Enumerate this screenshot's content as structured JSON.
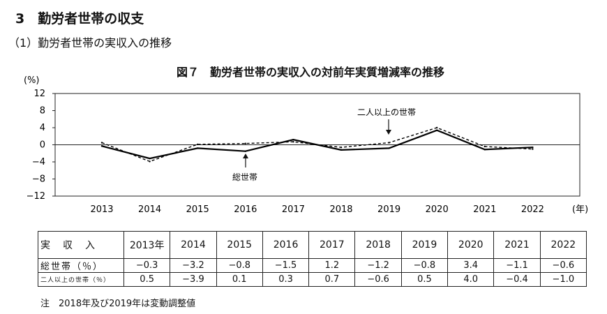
{
  "section_title": "3　勤労者世帯の収支",
  "subsection_title": "（1）勤労者世帯の実収入の推移",
  "chart_data": {
    "type": "line",
    "title": "図７　勤労者世帯の実収入の対前年実質増減率の推移",
    "ylabel": "(%)",
    "xlabel": "(年)",
    "ylim": [
      -12,
      12
    ],
    "yticks": [
      12,
      8,
      4,
      0,
      -4,
      -8,
      -12
    ],
    "ytick_labels": [
      "12",
      "8",
      "4",
      "0",
      "−4",
      "−8",
      "−12"
    ],
    "categories": [
      "2013",
      "2014",
      "2015",
      "2016",
      "2017",
      "2018",
      "2019",
      "2020",
      "2021",
      "2022"
    ],
    "series": [
      {
        "name": "総世帯",
        "values": [
          -0.3,
          -3.2,
          -0.8,
          -1.5,
          1.2,
          -1.2,
          -0.8,
          3.4,
          -1.1,
          -0.6
        ],
        "style": "solid",
        "color": "#000000"
      },
      {
        "name": "二人以上の世帯",
        "values": [
          0.5,
          -3.9,
          0.1,
          0.3,
          0.7,
          -0.6,
          0.5,
          4.0,
          -0.4,
          -1.0
        ],
        "style": "dashed",
        "color": "#000000"
      }
    ],
    "annotations": [
      {
        "text": "二人以上の世帯",
        "points_to": "2019",
        "arrow": "down"
      },
      {
        "text": "総世帯",
        "points_to": "2016",
        "arrow": "up"
      }
    ],
    "grid": false
  },
  "table": {
    "header_label": "実収入",
    "years": [
      "2013年",
      "2014",
      "2015",
      "2016",
      "2017",
      "2018",
      "2019",
      "2020",
      "2021",
      "2022"
    ],
    "rows": [
      {
        "label": "総世帯（％）",
        "values": [
          "−0.3",
          "−3.2",
          "−0.8",
          "−1.5",
          "1.2",
          "−1.2",
          "−0.8",
          "3.4",
          "−1.1",
          "−0.6"
        ]
      },
      {
        "label": "二人以上の世帯（％）",
        "values": [
          "0.5",
          "−3.9",
          "0.1",
          "0.3",
          "0.7",
          "−0.6",
          "0.5",
          "4.0",
          "−0.4",
          "−1.0"
        ]
      }
    ]
  },
  "note": "注　2018年及び2019年は変動調整値"
}
